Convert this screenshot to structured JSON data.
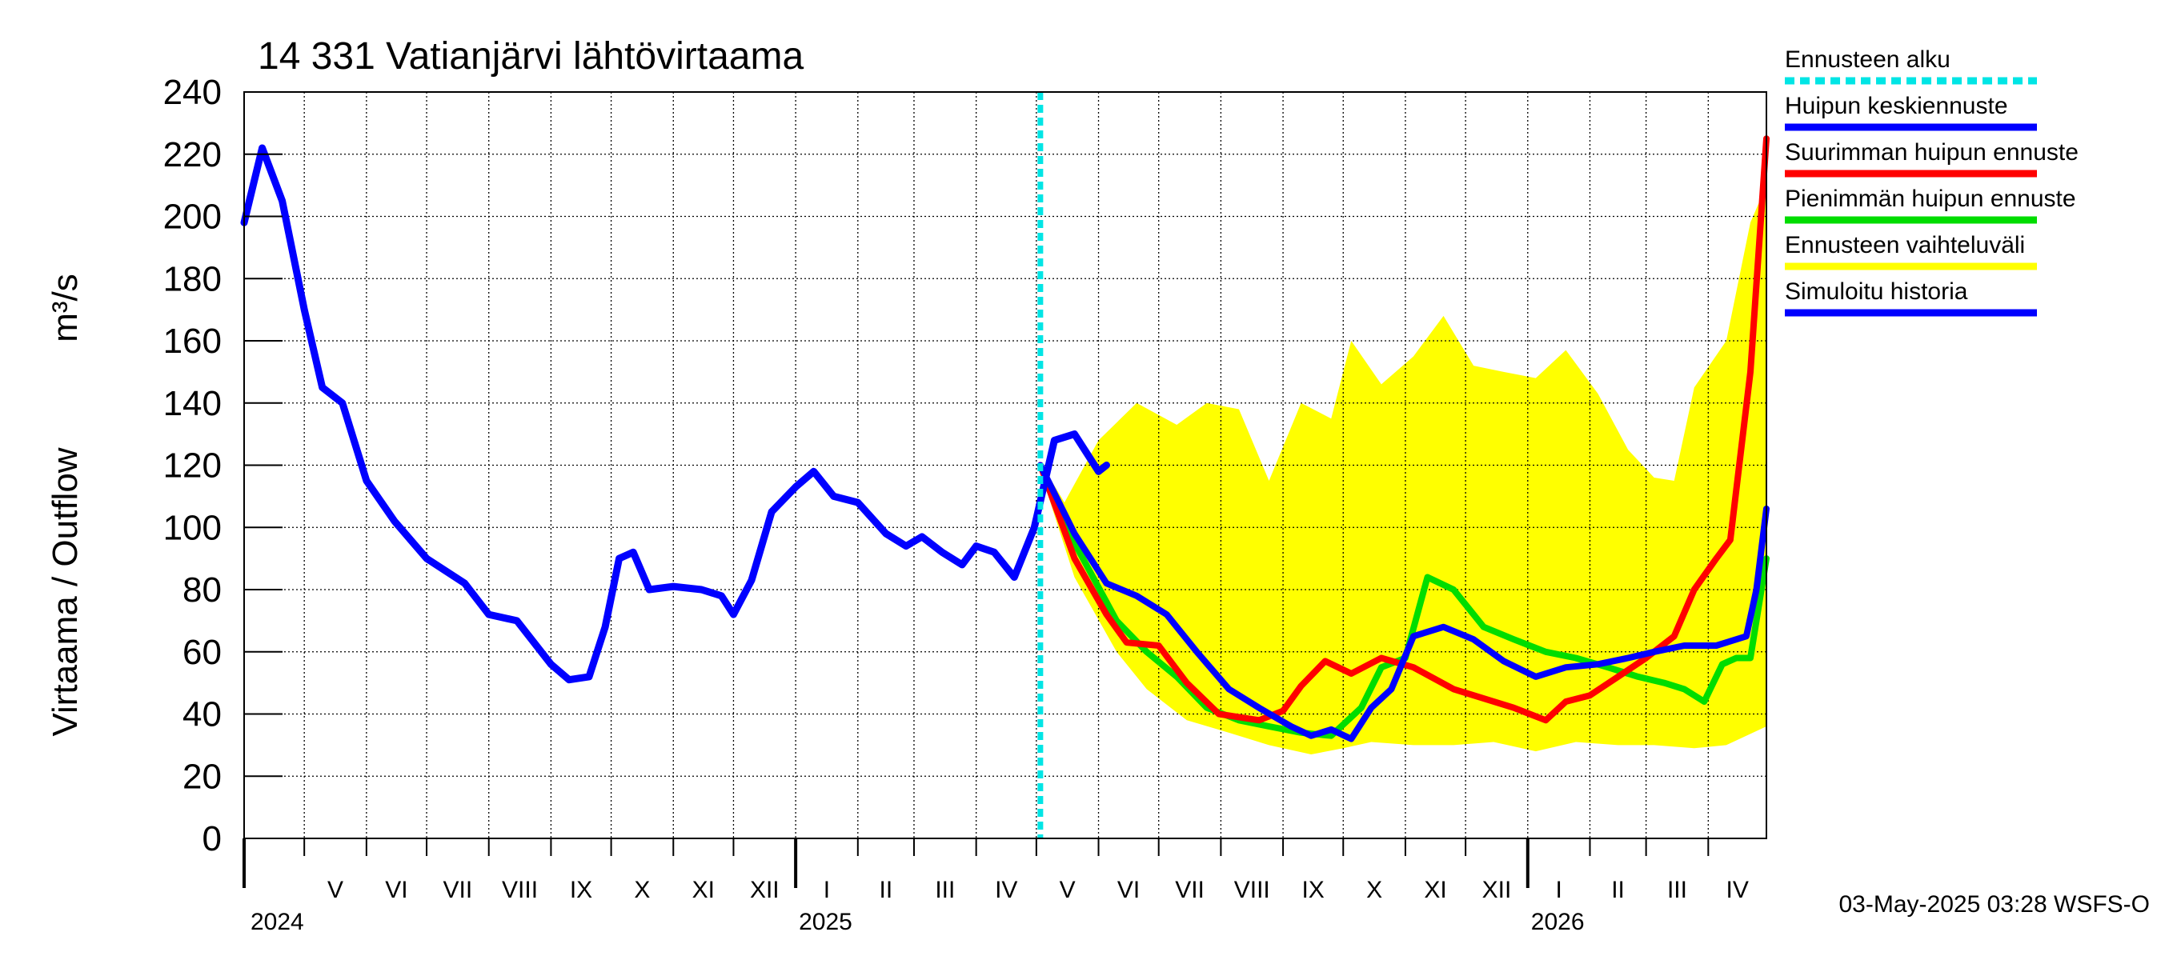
{
  "chart_data": {
    "type": "line",
    "title": "14 331 Vatianjärvi lähtövirtaama",
    "ylabel": "Virtaama / Outflow",
    "yunit": "m³/s",
    "ylim": [
      0,
      240
    ],
    "yticks": [
      0,
      20,
      40,
      60,
      80,
      100,
      120,
      140,
      160,
      180,
      200,
      220,
      240
    ],
    "grid": true,
    "legend_position": "right",
    "x_range": [
      "2024-04-01",
      "2026-04-30"
    ],
    "forecast_start": "2025-05-03",
    "months": [
      {
        "label": "V",
        "start": "2024-05-01"
      },
      {
        "label": "VI",
        "start": "2024-06-01"
      },
      {
        "label": "VII",
        "start": "2024-07-01"
      },
      {
        "label": "VIII",
        "start": "2024-08-01"
      },
      {
        "label": "IX",
        "start": "2024-09-01"
      },
      {
        "label": "X",
        "start": "2024-10-01"
      },
      {
        "label": "XI",
        "start": "2024-11-01"
      },
      {
        "label": "XII",
        "start": "2024-12-01"
      },
      {
        "label": "I",
        "start": "2025-01-01"
      },
      {
        "label": "II",
        "start": "2025-02-01"
      },
      {
        "label": "III",
        "start": "2025-03-01"
      },
      {
        "label": "IV",
        "start": "2025-04-01"
      },
      {
        "label": "V",
        "start": "2025-05-01"
      },
      {
        "label": "VI",
        "start": "2025-06-01"
      },
      {
        "label": "VII",
        "start": "2025-07-01"
      },
      {
        "label": "VIII",
        "start": "2025-08-01"
      },
      {
        "label": "IX",
        "start": "2025-09-01"
      },
      {
        "label": "X",
        "start": "2025-10-01"
      },
      {
        "label": "XI",
        "start": "2025-11-01"
      },
      {
        "label": "XII",
        "start": "2025-12-01"
      },
      {
        "label": "I",
        "start": "2026-01-01"
      },
      {
        "label": "II",
        "start": "2026-02-01"
      },
      {
        "label": "III",
        "start": "2026-03-01"
      },
      {
        "label": "IV",
        "start": "2026-04-01"
      }
    ],
    "years": [
      {
        "label": "2024",
        "at": "2024-05-01"
      },
      {
        "label": "2025",
        "at": "2025-01-01"
      },
      {
        "label": "2026",
        "at": "2026-01-01"
      }
    ],
    "series": [
      {
        "name": "Ennusteen vaihteluväli",
        "kind": "band",
        "color": "#ffff00",
        "upper": [
          [
            "2025-05-03",
            121
          ],
          [
            "2025-05-15",
            108
          ],
          [
            "2025-06-01",
            128
          ],
          [
            "2025-06-20",
            140
          ],
          [
            "2025-07-10",
            133
          ],
          [
            "2025-07-25",
            140
          ],
          [
            "2025-08-10",
            138
          ],
          [
            "2025-08-25",
            115
          ],
          [
            "2025-09-10",
            140
          ],
          [
            "2025-09-25",
            135
          ],
          [
            "2025-10-05",
            160
          ],
          [
            "2025-10-20",
            146
          ],
          [
            "2025-11-05",
            155
          ],
          [
            "2025-11-20",
            168
          ],
          [
            "2025-12-05",
            152
          ],
          [
            "2025-12-20",
            150
          ],
          [
            "2026-01-05",
            148
          ],
          [
            "2026-01-20",
            157
          ],
          [
            "2026-02-05",
            143
          ],
          [
            "2026-02-20",
            125
          ],
          [
            "2026-03-05",
            116
          ],
          [
            "2026-03-15",
            115
          ],
          [
            "2026-03-25",
            145
          ],
          [
            "2026-04-10",
            160
          ],
          [
            "2026-04-22",
            198
          ],
          [
            "2026-04-30",
            210
          ]
        ],
        "lower": [
          [
            "2025-05-03",
            118
          ],
          [
            "2025-05-20",
            84
          ],
          [
            "2025-06-10",
            60
          ],
          [
            "2025-06-25",
            48
          ],
          [
            "2025-07-15",
            38
          ],
          [
            "2025-08-05",
            34
          ],
          [
            "2025-08-25",
            30
          ],
          [
            "2025-09-15",
            27
          ],
          [
            "2025-10-01",
            29
          ],
          [
            "2025-10-15",
            31
          ],
          [
            "2025-11-05",
            30
          ],
          [
            "2025-11-25",
            30
          ],
          [
            "2025-12-15",
            31
          ],
          [
            "2026-01-05",
            28
          ],
          [
            "2026-01-25",
            31
          ],
          [
            "2026-02-15",
            30
          ],
          [
            "2026-03-05",
            30
          ],
          [
            "2026-03-25",
            29
          ],
          [
            "2026-04-10",
            30
          ],
          [
            "2026-04-30",
            36
          ]
        ]
      },
      {
        "name": "Pienimmän huipun ennuste",
        "color": "#00dd00",
        "points": [
          [
            "2025-05-03",
            120
          ],
          [
            "2025-05-20",
            95
          ],
          [
            "2025-06-10",
            70
          ],
          [
            "2025-06-25",
            60
          ],
          [
            "2025-07-10",
            52
          ],
          [
            "2025-07-25",
            42
          ],
          [
            "2025-08-10",
            38
          ],
          [
            "2025-08-25",
            36
          ],
          [
            "2025-09-10",
            34
          ],
          [
            "2025-09-25",
            33
          ],
          [
            "2025-10-10",
            42
          ],
          [
            "2025-10-20",
            55
          ],
          [
            "2025-11-01",
            58
          ],
          [
            "2025-11-12",
            84
          ],
          [
            "2025-11-25",
            80
          ],
          [
            "2025-12-10",
            68
          ],
          [
            "2025-12-25",
            64
          ],
          [
            "2026-01-10",
            60
          ],
          [
            "2026-01-25",
            58
          ],
          [
            "2026-02-10",
            55
          ],
          [
            "2026-02-25",
            52
          ],
          [
            "2026-03-10",
            50
          ],
          [
            "2026-03-20",
            48
          ],
          [
            "2026-03-30",
            44
          ],
          [
            "2026-04-08",
            56
          ],
          [
            "2026-04-15",
            58
          ],
          [
            "2026-04-22",
            58
          ],
          [
            "2026-04-30",
            90
          ]
        ]
      },
      {
        "name": "Suurimman huipun ennuste",
        "color": "#ff0000",
        "points": [
          [
            "2025-05-03",
            120
          ],
          [
            "2025-05-20",
            90
          ],
          [
            "2025-06-05",
            72
          ],
          [
            "2025-06-15",
            63
          ],
          [
            "2025-07-01",
            62
          ],
          [
            "2025-07-15",
            50
          ],
          [
            "2025-07-31",
            40
          ],
          [
            "2025-08-20",
            38
          ],
          [
            "2025-09-01",
            41
          ],
          [
            "2025-09-10",
            49
          ],
          [
            "2025-09-22",
            57
          ],
          [
            "2025-10-05",
            53
          ],
          [
            "2025-10-20",
            58
          ],
          [
            "2025-11-05",
            55
          ],
          [
            "2025-11-25",
            48
          ],
          [
            "2025-12-10",
            45
          ],
          [
            "2025-12-25",
            42
          ],
          [
            "2026-01-10",
            38
          ],
          [
            "2026-01-20",
            44
          ],
          [
            "2026-02-01",
            46
          ],
          [
            "2026-02-15",
            52
          ],
          [
            "2026-03-01",
            58
          ],
          [
            "2026-03-15",
            65
          ],
          [
            "2026-03-25",
            80
          ],
          [
            "2026-04-05",
            90
          ],
          [
            "2026-04-12",
            96
          ],
          [
            "2026-04-22",
            150
          ],
          [
            "2026-04-30",
            225
          ]
        ]
      },
      {
        "name": "Huipun keskiennuste",
        "color": "#0000ff",
        "points": [
          [
            "2025-05-03",
            120
          ],
          [
            "2025-05-20",
            98
          ],
          [
            "2025-06-05",
            82
          ],
          [
            "2025-06-20",
            78
          ],
          [
            "2025-07-05",
            72
          ],
          [
            "2025-07-20",
            60
          ],
          [
            "2025-08-05",
            48
          ],
          [
            "2025-08-20",
            42
          ],
          [
            "2025-09-05",
            36
          ],
          [
            "2025-09-15",
            33
          ],
          [
            "2025-09-25",
            35
          ],
          [
            "2025-10-05",
            32
          ],
          [
            "2025-10-15",
            42
          ],
          [
            "2025-10-25",
            48
          ],
          [
            "2025-11-05",
            65
          ],
          [
            "2025-11-20",
            68
          ],
          [
            "2025-12-05",
            64
          ],
          [
            "2025-12-20",
            57
          ],
          [
            "2026-01-05",
            52
          ],
          [
            "2026-01-20",
            55
          ],
          [
            "2026-02-05",
            56
          ],
          [
            "2026-02-20",
            58
          ],
          [
            "2026-03-05",
            60
          ],
          [
            "2026-03-20",
            62
          ],
          [
            "2026-04-05",
            62
          ],
          [
            "2026-04-20",
            65
          ],
          [
            "2026-04-25",
            80
          ],
          [
            "2026-04-30",
            106
          ]
        ]
      },
      {
        "name": "Simuloitu historia",
        "color": "#0000ff",
        "points": [
          [
            "2024-04-01",
            198
          ],
          [
            "2024-04-10",
            222
          ],
          [
            "2024-04-20",
            205
          ],
          [
            "2024-05-01",
            170
          ],
          [
            "2024-05-10",
            145
          ],
          [
            "2024-05-20",
            140
          ],
          [
            "2024-06-01",
            115
          ],
          [
            "2024-06-15",
            102
          ],
          [
            "2024-07-01",
            90
          ],
          [
            "2024-07-20",
            82
          ],
          [
            "2024-08-01",
            72
          ],
          [
            "2024-08-15",
            70
          ],
          [
            "2024-09-01",
            56
          ],
          [
            "2024-09-10",
            51
          ],
          [
            "2024-09-20",
            52
          ],
          [
            "2024-09-28",
            68
          ],
          [
            "2024-10-05",
            90
          ],
          [
            "2024-10-12",
            92
          ],
          [
            "2024-10-20",
            80
          ],
          [
            "2024-11-01",
            81
          ],
          [
            "2024-11-15",
            80
          ],
          [
            "2024-11-25",
            78
          ],
          [
            "2024-12-01",
            72
          ],
          [
            "2024-12-10",
            83
          ],
          [
            "2024-12-20",
            105
          ],
          [
            "2025-01-01",
            113
          ],
          [
            "2025-01-10",
            118
          ],
          [
            "2025-01-20",
            110
          ],
          [
            "2025-02-01",
            108
          ],
          [
            "2025-02-15",
            98
          ],
          [
            "2025-02-25",
            94
          ],
          [
            "2025-03-05",
            97
          ],
          [
            "2025-03-15",
            92
          ],
          [
            "2025-03-25",
            88
          ],
          [
            "2025-04-01",
            94
          ],
          [
            "2025-04-10",
            92
          ],
          [
            "2025-04-20",
            84
          ],
          [
            "2025-04-30",
            100
          ],
          [
            "2025-05-10",
            128
          ],
          [
            "2025-05-20",
            130
          ],
          [
            "2025-06-01",
            118
          ],
          [
            "2025-06-05",
            120
          ]
        ]
      }
    ],
    "legend": [
      {
        "label": "Ennusteen alku",
        "color": "#00e5e5",
        "style": "dashed"
      },
      {
        "label": "Huipun keskiennuste",
        "color": "#0000ff",
        "style": "solid"
      },
      {
        "label": "Suurimman huipun ennuste",
        "color": "#ff0000",
        "style": "solid"
      },
      {
        "label": "Pienimmän huipun ennuste",
        "color": "#00dd00",
        "style": "solid"
      },
      {
        "label": "Ennusteen vaihteluväli",
        "color": "#ffff00",
        "style": "solid"
      },
      {
        "label": "Simuloitu historia",
        "color": "#0000ff",
        "style": "solid"
      }
    ],
    "footer": "03-May-2025 03:28 WSFS-O"
  }
}
